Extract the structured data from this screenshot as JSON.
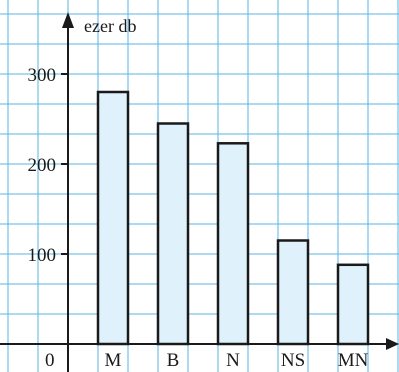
{
  "chart_data": {
    "type": "bar",
    "categories": [
      "M",
      "B",
      "N",
      "NS",
      "MN"
    ],
    "values": [
      280,
      245,
      223,
      115,
      88
    ],
    "unit_label": "ezer db",
    "origin_label": "0",
    "yticks": [
      100,
      200,
      300
    ],
    "ylim": [
      0,
      340
    ],
    "grid": true,
    "colors": {
      "bar_fill": "#dff2fb",
      "bar_stroke": "#1a1a1a",
      "grid": "#5ab4e6",
      "axis": "#1a1a1a"
    }
  }
}
